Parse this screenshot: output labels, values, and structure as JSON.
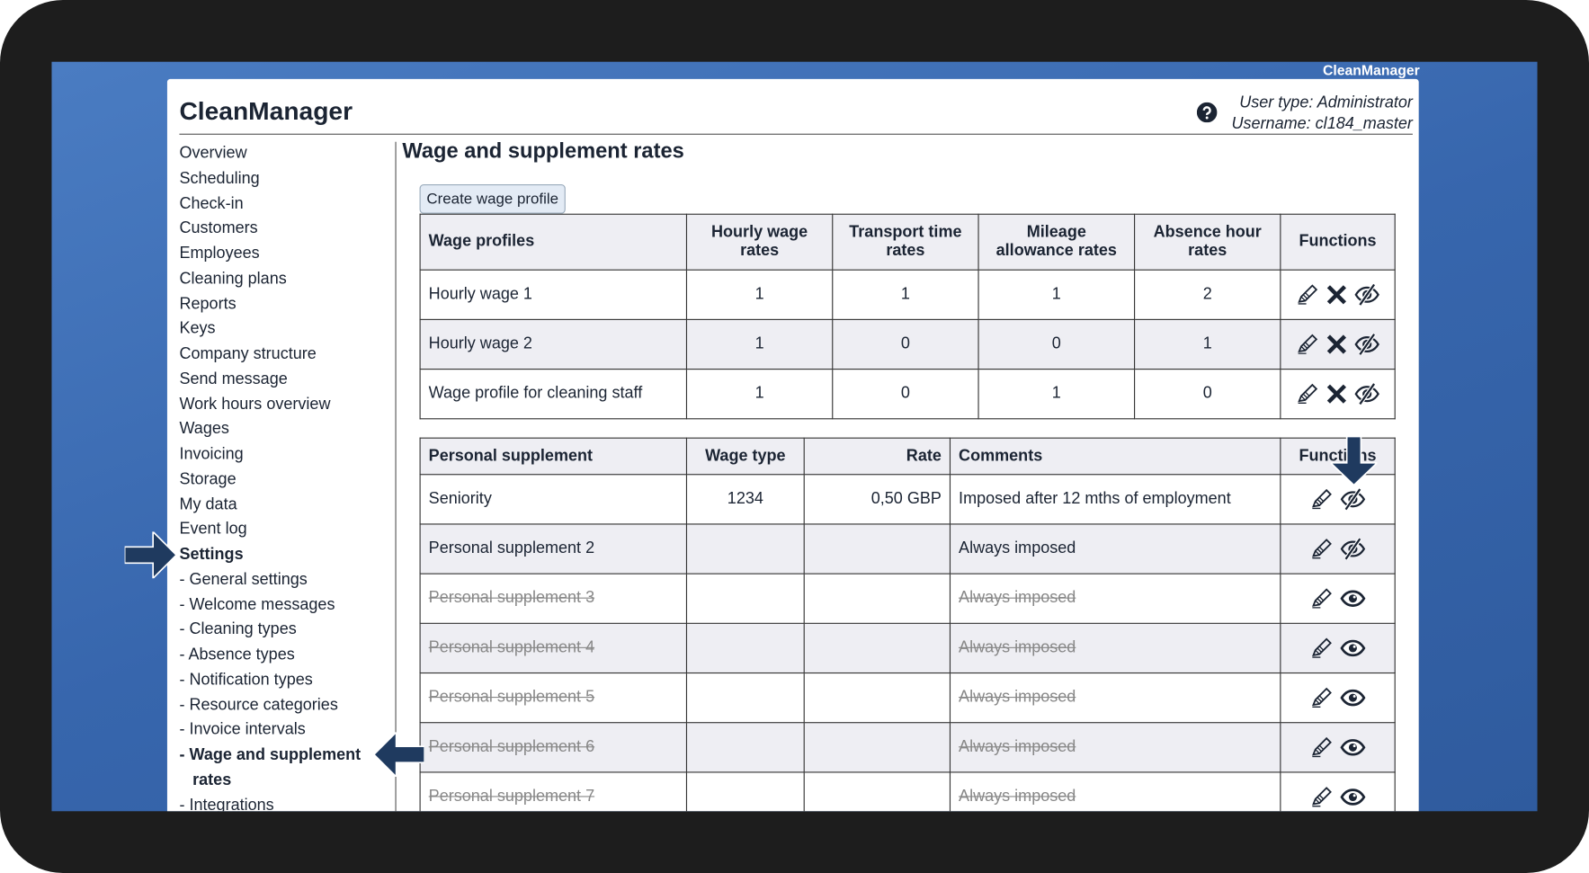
{
  "screen_label": "CleanManager",
  "header": {
    "title": "CleanManager",
    "user_type": "User type: Administrator",
    "username": "Username: cl184_master"
  },
  "nav": [
    {
      "label": "Overview"
    },
    {
      "label": "Scheduling"
    },
    {
      "label": "Check-in"
    },
    {
      "label": "Customers"
    },
    {
      "label": "Employees"
    },
    {
      "label": "Cleaning plans"
    },
    {
      "label": "Reports"
    },
    {
      "label": "Keys"
    },
    {
      "label": "Company structure"
    },
    {
      "label": "Send message"
    },
    {
      "label": "Work hours overview"
    },
    {
      "label": "Wages"
    },
    {
      "label": "Invoicing"
    },
    {
      "label": "Storage"
    },
    {
      "label": "My data"
    },
    {
      "label": "Event log"
    },
    {
      "label": "Settings",
      "bold": true
    },
    {
      "label": "- General settings"
    },
    {
      "label": "- Welcome messages"
    },
    {
      "label": "- Cleaning types"
    },
    {
      "label": "- Absence types"
    },
    {
      "label": "- Notification types"
    },
    {
      "label": "- Resource categories"
    },
    {
      "label": "- Invoice intervals"
    },
    {
      "label": "- Wage and supplement rates",
      "bold": true
    },
    {
      "label": "- Integrations"
    }
  ],
  "page_title": "Wage and supplement rates",
  "button": "Create wage profile",
  "wage_table": {
    "headers": [
      "Wage profiles",
      "Hourly wage rates",
      "Transport time rates",
      "Mileage allowance rates",
      "Absence hour rates",
      "Functions"
    ],
    "rows": [
      [
        "Hourly wage 1",
        1,
        1,
        1,
        2
      ],
      [
        "Hourly wage 2",
        1,
        0,
        0,
        1
      ],
      [
        "Wage profile for cleaning staff",
        1,
        0,
        1,
        0
      ]
    ]
  },
  "supplement_table": {
    "headers": [
      "Personal supplement",
      "Wage type",
      "Rate",
      "Comments",
      "Functions"
    ],
    "rows": [
      {
        "cells": [
          "Seniority",
          1234,
          "0,50 GBP",
          "Imposed after 12 mths of employment"
        ],
        "active": true
      },
      {
        "cells": [
          "Personal supplement 2",
          null,
          null,
          "Always imposed"
        ],
        "active": true
      },
      {
        "cells": [
          "Personal supplement 3",
          null,
          null,
          "Always imposed"
        ],
        "active": false
      },
      {
        "cells": [
          "Personal supplement 4",
          null,
          null,
          "Always imposed"
        ],
        "active": false
      },
      {
        "cells": [
          "Personal supplement 5",
          null,
          null,
          "Always imposed"
        ],
        "active": false
      },
      {
        "cells": [
          "Personal supplement 6",
          null,
          null,
          "Always imposed"
        ],
        "active": false
      },
      {
        "cells": [
          "Personal supplement 7",
          null,
          null,
          "Always imposed"
        ],
        "active": false
      }
    ]
  }
}
